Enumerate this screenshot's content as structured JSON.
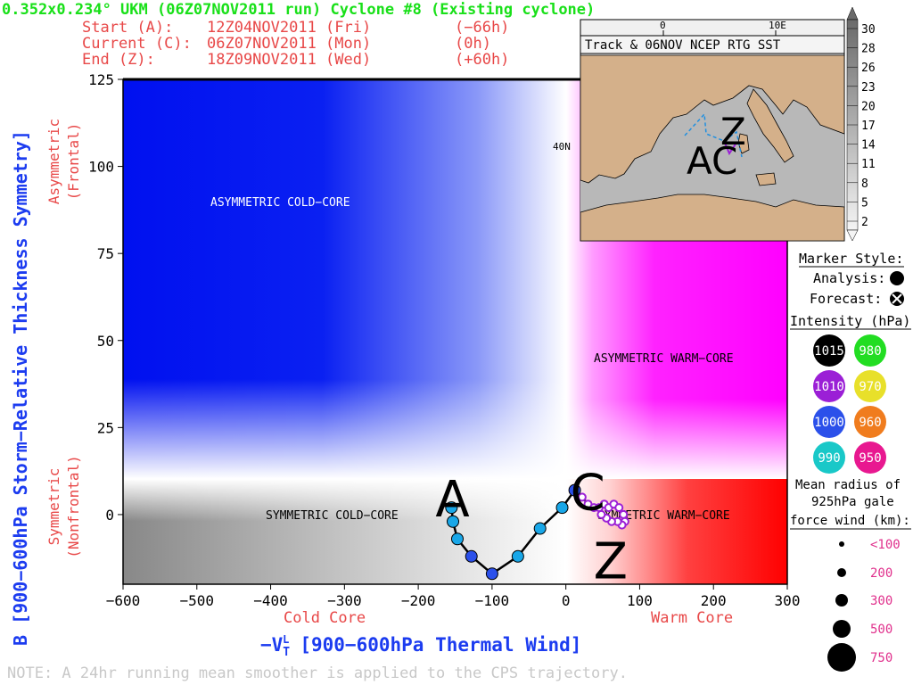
{
  "header": {
    "title": "0.352x0.234° UKM (06Z07NOV2011 run) Cyclone #8 (Existing cyclone)",
    "start_label": "Start (A):",
    "start_value": "12Z04NOV2011 (Fri)",
    "start_offset": "(−66h)",
    "current_label": "Current (C):",
    "current_value": "06Z07NOV2011 (Mon)",
    "current_offset": "(0h)",
    "end_label": "End (Z):",
    "end_value": "18Z09NOV2011 (Wed)",
    "end_offset": "(+60h)"
  },
  "colors": {
    "title": "#19e019",
    "info": "#e84848",
    "axis_title": "#1c3cf0",
    "cold_label": "#e84848",
    "warm_label": "#e84848",
    "quadrant_cold": "#0010f0",
    "quadrant_warm": "#ff00ff",
    "quadrant_sym_warm": "#ff0000",
    "quadrant_sym_cold": "#888888",
    "track_line": "#000000",
    "marker_1000": "#2b50ea",
    "marker_990": "#19a7e8",
    "marker_1010": "#9b1fd6"
  },
  "chart_data": {
    "type": "scatter",
    "xlabel": "−V",
    "xlabel_sub": "T",
    "xlabel_sup": "L",
    "xlabel_rest": "[900−600hPa Thermal Wind]",
    "ylabel": "B [900−600hPa Storm−Relative Thickness Symmetry]",
    "x_ticks": [
      "−600",
      "−500",
      "−400",
      "−300",
      "−200",
      "−100",
      "0",
      "100",
      "200",
      "300"
    ],
    "y_ticks": [
      "0",
      "25",
      "50",
      "75",
      "100",
      "125"
    ],
    "xlim": [
      -600,
      300
    ],
    "ylim": [
      -20,
      125
    ],
    "x_side_left": "Cold Core",
    "x_side_right": "Warm Core",
    "y_side_top_line1": "Asymmetric",
    "y_side_top_line2": "(Frontal)",
    "y_side_bottom_line1": "Symmetric",
    "y_side_bottom_line2": "(Nonfrontal)",
    "quadrants": {
      "asym_cold": "ASYMMETRIC COLD−CORE",
      "asym_warm": "ASYMMETRIC WARM−CORE",
      "sym_cold": "SYMMETRIC COLD−CORE",
      "sym_warm": "SYMMETRIC WARM−CORE"
    },
    "track_letters": {
      "start": "A",
      "current": "C",
      "end": "Z"
    },
    "track": [
      {
        "x": -155,
        "y": 2,
        "p": "990"
      },
      {
        "x": -153,
        "y": -2,
        "p": "990"
      },
      {
        "x": -147,
        "y": -7,
        "p": "990"
      },
      {
        "x": -128,
        "y": -12,
        "p": "1000"
      },
      {
        "x": -100,
        "y": -17,
        "p": "1000"
      },
      {
        "x": -65,
        "y": -12,
        "p": "990"
      },
      {
        "x": -35,
        "y": -4,
        "p": "990"
      },
      {
        "x": -5,
        "y": 2,
        "p": "990"
      },
      {
        "x": 12,
        "y": 7,
        "p": "1000"
      }
    ],
    "forecast": [
      {
        "x": 22,
        "y": 5
      },
      {
        "x": 30,
        "y": 3
      },
      {
        "x": 38,
        "y": 2
      },
      {
        "x": 45,
        "y": 2
      },
      {
        "x": 52,
        "y": 3
      },
      {
        "x": 58,
        "y": 2
      },
      {
        "x": 65,
        "y": 3
      },
      {
        "x": 72,
        "y": 2
      },
      {
        "x": 78,
        "y": 0
      },
      {
        "x": 80,
        "y": -2
      },
      {
        "x": 76,
        "y": -3
      },
      {
        "x": 70,
        "y": -2
      },
      {
        "x": 62,
        "y": -2
      },
      {
        "x": 55,
        "y": -1
      },
      {
        "x": 48,
        "y": 0
      }
    ]
  },
  "map": {
    "title": "Track & 06NOV NCEP RTG SST",
    "lon_labels": [
      "0",
      "10E"
    ],
    "lat_label": "40N",
    "letters": "AC",
    "letter_z": "Z",
    "colorbar_values": [
      "30",
      "28",
      "26",
      "23",
      "20",
      "17",
      "14",
      "11",
      "8",
      "5",
      "2"
    ]
  },
  "legend": {
    "marker_style": "Marker Style:",
    "analysis": "Analysis:",
    "forecast": "Forecast:",
    "intensity": "Intensity (hPa):",
    "intensities": [
      {
        "value": "1015",
        "color": "#000000",
        "text_color": "#ffffff"
      },
      {
        "value": "980",
        "color": "#22dd22",
        "text_color": "#ffffff"
      },
      {
        "value": "1010",
        "color": "#9b1fd6",
        "text_color": "#ffffff"
      },
      {
        "value": "970",
        "color": "#e8e02a",
        "text_color": "#ffffff"
      },
      {
        "value": "1000",
        "color": "#2b50ea",
        "text_color": "#ffffff"
      },
      {
        "value": "960",
        "color": "#f07c1e",
        "text_color": "#ffffff"
      },
      {
        "value": "990",
        "color": "#19c8c8",
        "text_color": "#ffffff"
      },
      {
        "value": "950",
        "color": "#e81890",
        "text_color": "#ffffff"
      }
    ],
    "radius_line1": "Mean radius of",
    "radius_line2": "925hPa gale",
    "radius_line3": "force wind (km):",
    "radii": [
      "<100",
      "200",
      "300",
      "500",
      "750"
    ]
  },
  "note": "NOTE: A 24hr running mean smoother is applied to the CPS trajectory."
}
